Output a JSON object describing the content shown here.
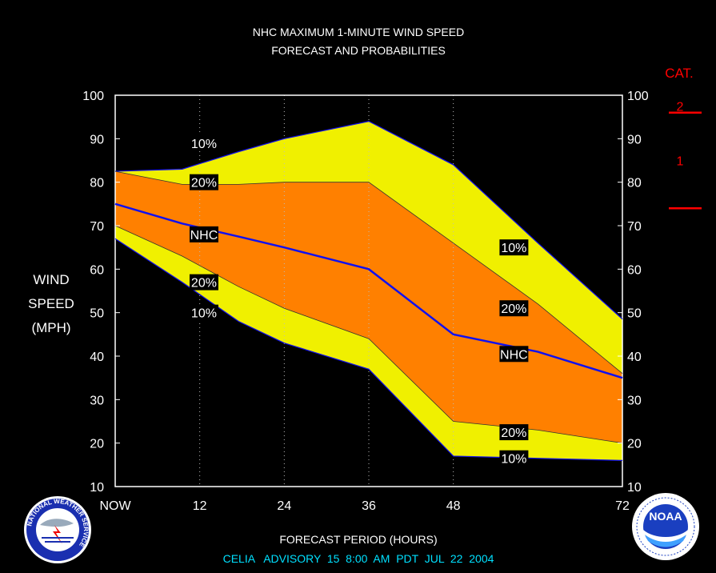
{
  "chart_data": {
    "type": "area",
    "title": "NHC MAXIMUM 1-MINUTE WIND SPEED",
    "subtitle": "FORECAST AND PROBABILITIES",
    "xlabel": "FORECAST PERIOD (HOURS)",
    "ylabel": [
      "WIND",
      "SPEED",
      "(MPH)"
    ],
    "advisory": "CELIA   ADVISORY  15  8:00  AM  PDT  JUL  22  2004",
    "xlim": [
      0,
      72
    ],
    "ylim": [
      10,
      100
    ],
    "x_tick_labels": [
      {
        "x": 0,
        "label": "NOW"
      },
      {
        "x": 12,
        "label": "12"
      },
      {
        "x": 24,
        "label": "24"
      },
      {
        "x": 36,
        "label": "36"
      },
      {
        "x": 48,
        "label": "48"
      },
      {
        "x": 72,
        "label": "72"
      }
    ],
    "y_ticks": [
      10,
      20,
      30,
      40,
      50,
      60,
      70,
      80,
      90,
      100
    ],
    "gridlines_x": [
      12,
      24,
      36,
      48,
      72
    ],
    "x": [
      0,
      9.5,
      17.5,
      24,
      36,
      48,
      60,
      72
    ],
    "series": [
      {
        "name": "10%",
        "role": "upper",
        "values": [
          82.5,
          83,
          87,
          90,
          94,
          84,
          66,
          48.5
        ]
      },
      {
        "name": "20%",
        "role": "upper",
        "values": [
          82.5,
          79.5,
          79.5,
          80,
          80,
          66,
          52,
          36
        ]
      },
      {
        "name": "NHC",
        "role": "forecast",
        "values": [
          75,
          70.5,
          67.5,
          65,
          60,
          45,
          41,
          35
        ]
      },
      {
        "name": "20%",
        "role": "lower",
        "values": [
          70,
          63,
          56,
          51,
          44,
          25,
          23,
          20
        ]
      },
      {
        "name": "10%",
        "role": "lower",
        "values": [
          67,
          57,
          48,
          43,
          37,
          17,
          16.5,
          16
        ]
      }
    ],
    "annotations": [
      {
        "text": "10%",
        "x": 12.6,
        "y": 89
      },
      {
        "text": "20%",
        "x": 12.6,
        "y": 80
      },
      {
        "text": "NHC",
        "x": 12.6,
        "y": 68
      },
      {
        "text": "20%",
        "x": 12.6,
        "y": 57
      },
      {
        "text": "10%",
        "x": 12.6,
        "y": 50
      },
      {
        "text": "10%",
        "x": 56.6,
        "y": 65
      },
      {
        "text": "20%",
        "x": 56.6,
        "y": 51
      },
      {
        "text": "NHC",
        "x": 56.6,
        "y": 40.5
      },
      {
        "text": "20%",
        "x": 56.6,
        "y": 22.5
      },
      {
        "text": "10%",
        "x": 56.6,
        "y": 16.5
      }
    ],
    "category_scale": {
      "title": "CAT.",
      "labels": [
        {
          "text": "2",
          "y": 97.5
        },
        {
          "text": "1",
          "y": 85
        }
      ],
      "thresholds": [
        96,
        74
      ]
    },
    "colors": {
      "background": "#000000",
      "band_10": "#f0f000",
      "band_20": "#ff8000",
      "forecast_line": "#1010f0",
      "text": "#ffffff",
      "advisory_text": "#00e0ff",
      "category": "#ff0000"
    }
  },
  "logos": {
    "left": {
      "icon": "nws-logo",
      "text": "NATIONAL WEATHER SERVICE"
    },
    "right": {
      "icon": "noaa-logo",
      "text": "NOAA"
    }
  }
}
